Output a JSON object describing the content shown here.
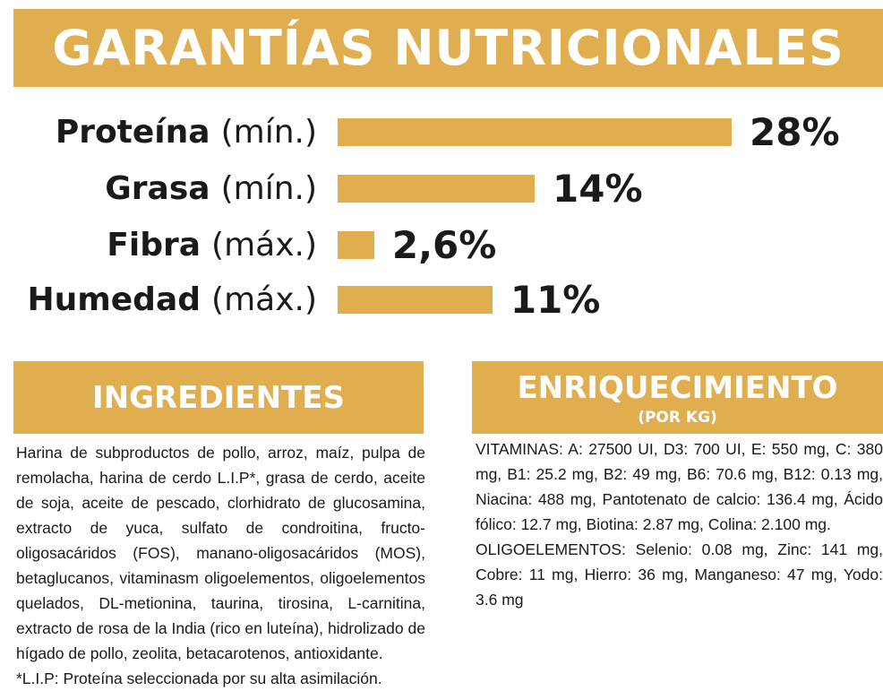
{
  "header": {
    "title": "GARANTÍAS NUTRICIONALES"
  },
  "colors": {
    "accent": "#e0ae4f",
    "text": "#1a1a1a",
    "header_text": "#ffffff"
  },
  "chart_data": {
    "type": "bar",
    "orientation": "horizontal",
    "title": "GARANTÍAS NUTRICIONALES",
    "categories": [
      "Proteína",
      "Grasa",
      "Fibra",
      "Humedad"
    ],
    "qualifiers": [
      "(mín.)",
      "(mín.)",
      "(máx.)",
      "(máx.)"
    ],
    "values": [
      28,
      14,
      2.6,
      11
    ],
    "value_labels": [
      "28%",
      "14%",
      "2,6%",
      "11%"
    ],
    "unit": "%",
    "xlim": [
      0,
      28
    ],
    "grid": false,
    "legend": "none",
    "color": "#e0ae4f"
  },
  "ingredients": {
    "title": "INGREDIENTES",
    "text": "Harina de subproductos de pollo, arroz, maíz, pulpa de remolacha, harina de cerdo L.I.P*, grasa de cerdo, aceite de soja, aceite de pescado, clorhidrato de glucosamina, extracto de yuca, sulfato de condroitina, fructo-oligosacáridos (FOS), manano-oligosacáridos (MOS), betaglucanos, vitaminasm oligoelementos, oligoelementos quelados, DL-metionina, taurina, tirosina, L-carnitina, extracto de rosa de la India (rico en luteína), hidrolizado de hígado de pollo, zeolita, betacarotenos, antioxidante.",
    "footnote": "*L.I.P: Proteína seleccionada por su alta asimilación."
  },
  "enrichment": {
    "title": "ENRIQUECIMIENTO",
    "subtitle": "(POR KG)",
    "vitamins": "VITAMINAS: A: 27500 UI, D3: 700 UI, E: 550 mg, C: 380 mg, B1: 25.2 mg, B2: 49 mg, B6: 70.6 mg, B12: 0.13 mg, Niacina: 488 mg, Pantotenato de calcio: 136.4 mg, Ácido fólico: 12.7 mg, Biotina: 2.87 mg, Colina: 2.100 mg.",
    "trace_elements": "OLIGOELEMENTOS: Selenio: 0.08 mg, Zinc: 141 mg, Cobre: 11 mg, Hierro: 36 mg, Manganeso: 47 mg, Yodo: 3.6 mg"
  }
}
